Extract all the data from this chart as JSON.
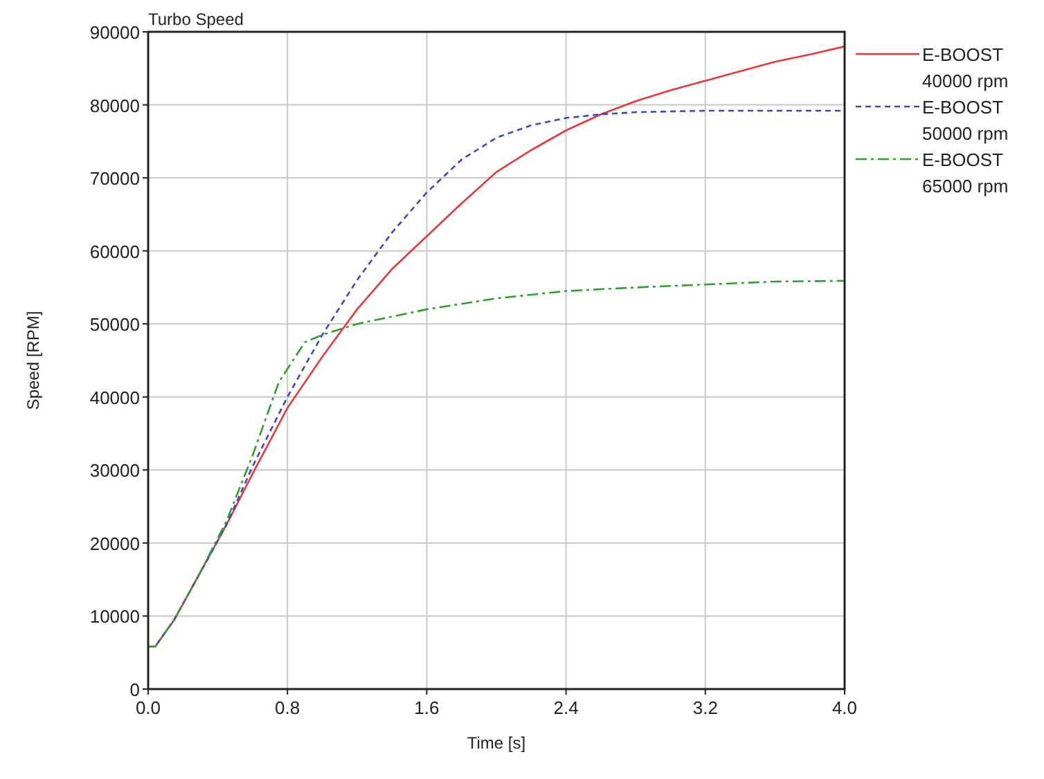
{
  "chart_data": {
    "type": "line",
    "title": "Turbo Speed",
    "xlabel": "Time [s]",
    "ylabel": "Speed [RPM]",
    "xlim": [
      0,
      4
    ],
    "ylim": [
      0,
      90000
    ],
    "xticks": [
      {
        "value": 0,
        "label": "0.0"
      },
      {
        "value": 0.8,
        "label": "0.8"
      },
      {
        "value": 1.6,
        "label": "1.6"
      },
      {
        "value": 2.4,
        "label": "2.4"
      },
      {
        "value": 3.2,
        "label": "3.2"
      },
      {
        "value": 4,
        "label": "4.0"
      }
    ],
    "yticks": [
      0,
      10000,
      20000,
      30000,
      40000,
      50000,
      60000,
      70000,
      80000,
      90000
    ],
    "grid": true,
    "legend": "top right",
    "marker": "none",
    "series": [
      {
        "name": "E-BOOST 40000 rpm",
        "color": "#e8383c",
        "line_style": "solid",
        "x": [
          0,
          0.04,
          0.15,
          0.3,
          0.45,
          0.6,
          0.8,
          1.0,
          1.2,
          1.4,
          1.6,
          1.8,
          2.0,
          2.2,
          2.4,
          2.6,
          2.8,
          3.0,
          3.2,
          3.4,
          3.6,
          3.8,
          4.0
        ],
        "values": [
          5800,
          5800,
          9500,
          16000,
          22500,
          29500,
          38500,
          45500,
          52000,
          57500,
          62000,
          66500,
          70800,
          73800,
          76500,
          78700,
          80500,
          82000,
          83300,
          84600,
          85900,
          86900,
          88000
        ]
      },
      {
        "name": "E-BOOST 50000 rpm",
        "color": "#3c46c8",
        "line_style": "dashed",
        "x": [
          0,
          0.04,
          0.15,
          0.3,
          0.45,
          0.6,
          0.8,
          1.0,
          1.2,
          1.4,
          1.6,
          1.8,
          2.0,
          2.2,
          2.4,
          2.6,
          2.8,
          3.0,
          3.2,
          3.6,
          4.0
        ],
        "values": [
          5800,
          5800,
          9500,
          16000,
          22500,
          30500,
          40000,
          48500,
          56000,
          62500,
          68000,
          72500,
          75500,
          77200,
          78200,
          78700,
          79000,
          79100,
          79200,
          79200,
          79200
        ]
      },
      {
        "name": "E-BOOST 65000 rpm",
        "color": "#2ca02c",
        "line_style": "dashdot",
        "x": [
          0,
          0.04,
          0.15,
          0.3,
          0.45,
          0.6,
          0.75,
          0.9,
          1.0,
          1.2,
          1.4,
          1.6,
          2.0,
          2.4,
          2.8,
          3.2,
          3.6,
          4.0
        ],
        "values": [
          5800,
          5800,
          9500,
          16000,
          23000,
          32000,
          42000,
          47500,
          48500,
          50000,
          51000,
          52000,
          53500,
          54500,
          55000,
          55400,
          55800,
          55900
        ]
      }
    ]
  }
}
